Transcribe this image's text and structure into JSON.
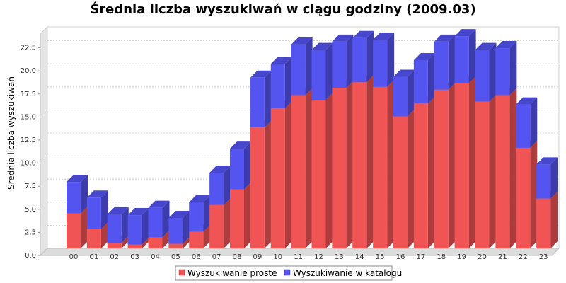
{
  "chart_data": {
    "type": "bar",
    "stacked": true,
    "style": "3d",
    "title": "Średnia liczba wyszukiwań w ciągu godziny (2009.03)",
    "xlabel": "",
    "ylabel": "Średnia liczba wyszukiwań",
    "ylim": [
      0,
      24
    ],
    "yticks": [
      "0.0",
      "2.5",
      "5.0",
      "7.5",
      "10.0",
      "12.5",
      "15.0",
      "17.5",
      "20.0",
      "22.5"
    ],
    "grid": true,
    "legend_position": "bottom",
    "categories": [
      "00",
      "01",
      "02",
      "03",
      "04",
      "05",
      "06",
      "07",
      "08",
      "09",
      "10",
      "11",
      "12",
      "13",
      "14",
      "15",
      "16",
      "17",
      "18",
      "19",
      "20",
      "21",
      "22",
      "23"
    ],
    "series": [
      {
        "name": "Wyszukiwanie proste",
        "color": "#f15454",
        "values": [
          3.8,
          2.1,
          0.6,
          0.4,
          1.2,
          0.5,
          1.8,
          4.7,
          6.4,
          13.1,
          15.2,
          16.6,
          16.1,
          17.4,
          18.0,
          17.5,
          14.3,
          15.7,
          17.2,
          17.9,
          15.9,
          16.6,
          10.9,
          5.4
        ]
      },
      {
        "name": "Wyszukiwanie w katalogu",
        "color": "#5454f1",
        "values": [
          3.4,
          3.4,
          3.1,
          3.2,
          3.2,
          2.8,
          3.2,
          3.5,
          4.4,
          5.4,
          4.8,
          5.5,
          5.4,
          5.0,
          4.8,
          5.1,
          4.3,
          4.7,
          5.2,
          5.1,
          5.6,
          5.1,
          4.7,
          3.7
        ]
      }
    ]
  }
}
